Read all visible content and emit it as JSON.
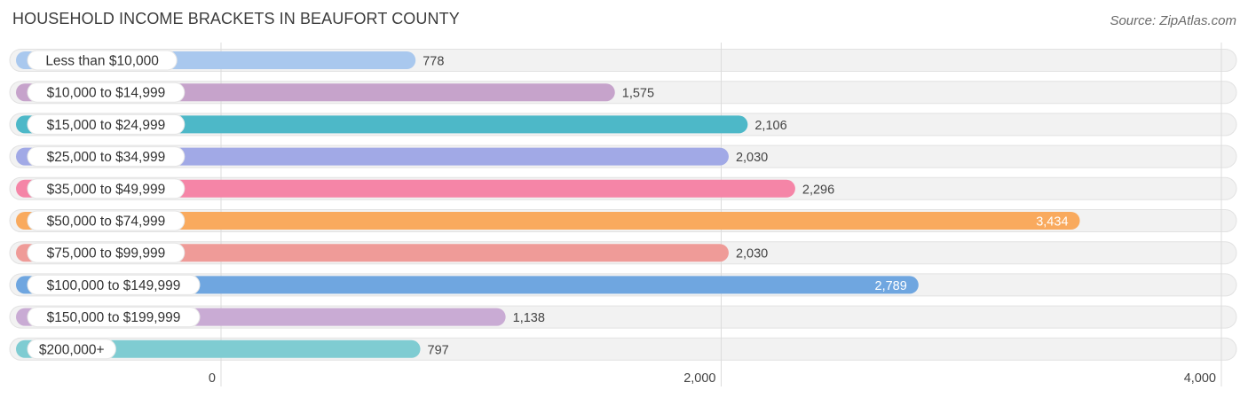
{
  "chart_data": {
    "type": "bar",
    "orientation": "horizontal",
    "title": "HOUSEHOLD INCOME BRACKETS IN BEAUFORT COUNTY",
    "source": "Source: ZipAtlas.com",
    "categories": [
      "Less than $10,000",
      "$10,000 to $14,999",
      "$15,000 to $24,999",
      "$25,000 to $34,999",
      "$35,000 to $49,999",
      "$50,000 to $74,999",
      "$75,000 to $99,999",
      "$100,000 to $149,999",
      "$150,000 to $199,999",
      "$200,000+"
    ],
    "values": [
      778,
      1575,
      2106,
      2030,
      2296,
      3434,
      2030,
      2789,
      1138,
      797
    ],
    "value_labels": [
      "778",
      "1,575",
      "2,106",
      "2,030",
      "2,296",
      "3,434",
      "2,030",
      "2,789",
      "1,138",
      "797"
    ],
    "colors": [
      "#a9c8ee",
      "#c6a3cb",
      "#4db8c8",
      "#a1a9e6",
      "#f585a7",
      "#f9aa5e",
      "#ef9b98",
      "#6fa6e0",
      "#c9abd4",
      "#7fccd2"
    ],
    "xlim": [
      0,
      4000
    ],
    "xticks": [
      0,
      2000,
      4000
    ],
    "xtick_labels": [
      "0",
      "2,000",
      "4,000"
    ],
    "grid": true
  }
}
